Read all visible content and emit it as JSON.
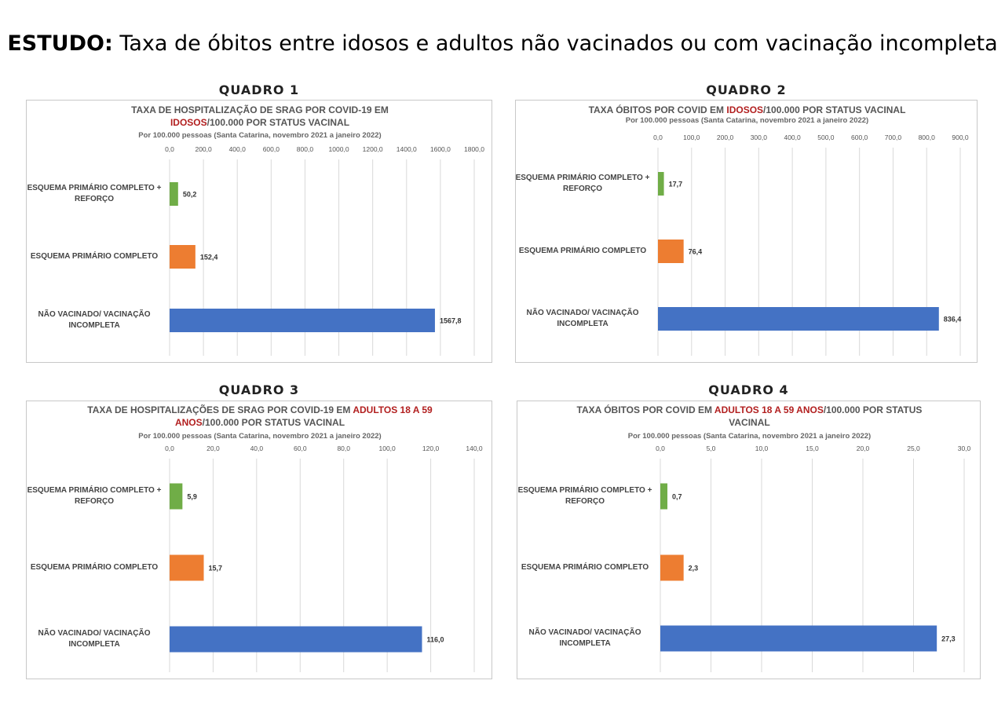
{
  "header": {
    "bold": "ESTUDO:",
    "rest": " Taxa de óbitos entre idosos e adultos não vacinados ou com vacinação incompleta"
  },
  "colors": {
    "green": "#70AD47",
    "orange": "#ED7D31",
    "blue": "#4472C4",
    "highlight": "#B21F1F",
    "grid": "#D9D9D9"
  },
  "chart_data": [
    {
      "type": "bar",
      "orientation": "horizontal",
      "panel_label": "QUADRO 1",
      "title_parts": [
        "TAXA DE HOSPITALIZAÇÃO DE SRAG POR COVID-19 EM ",
        "IDOSOS",
        "/100.000 POR STATUS VACINAL"
      ],
      "subtitle": "Por 100.000 pessoas  (Santa Catarina, novembro 2021 a  janeiro 2022)",
      "categories": [
        "ESQUEMA PRIMÁRIO COMPLETO + REFORÇO",
        "ESQUEMA PRIMÁRIO COMPLETO",
        "NÃO VACINADO/ VACINAÇÃO INCOMPLETA"
      ],
      "values": [
        50.2,
        152.4,
        1567.8
      ],
      "value_labels": [
        "50,2",
        "152,4",
        "1567,8"
      ],
      "xlim": [
        0,
        1800
      ],
      "ticks": [
        "0,0",
        "200,0",
        "400,0",
        "600,0",
        "800,0",
        "1000,0",
        "1200,0",
        "1400,0",
        "1600,0",
        "1800,0"
      ],
      "grid": true
    },
    {
      "type": "bar",
      "orientation": "horizontal",
      "panel_label": "QUADRO 2",
      "title_parts": [
        "TAXA ÓBITOS POR COVID EM ",
        "IDOSOS",
        "/100.000 POR STATUS VACINAL"
      ],
      "subtitle": "Por 100.000 pessoas  (Santa Catarina, novembro 2021 a  janeiro 2022)",
      "categories": [
        "ESQUEMA PRIMÁRIO COMPLETO + REFORÇO",
        "ESQUEMA PRIMÁRIO COMPLETO",
        "NÃO VACINADO/ VACINAÇÃO INCOMPLETA"
      ],
      "values": [
        17.7,
        76.4,
        836.4
      ],
      "value_labels": [
        "17,7",
        "76,4",
        "836,4"
      ],
      "xlim": [
        0,
        900
      ],
      "ticks": [
        "0,0",
        "100,0",
        "200,0",
        "300,0",
        "400,0",
        "500,0",
        "600,0",
        "700,0",
        "800,0",
        "900,0"
      ],
      "grid": true
    },
    {
      "type": "bar",
      "orientation": "horizontal",
      "panel_label": "QUADRO 3",
      "title_parts": [
        "TAXA DE HOSPITALIZAÇÕES DE SRAG POR COVID-19 EM ",
        "ADULTOS 18 A 59 ANOS",
        "/100.000 POR STATUS VACINAL"
      ],
      "subtitle": "Por 100.000 pessoas (Santa Catarina, novembro 2021 a janeiro 2022)",
      "categories": [
        "ESQUEMA PRIMÁRIO COMPLETO + REFORÇO",
        "ESQUEMA PRIMÁRIO COMPLETO",
        "NÃO VACINADO/ VACINAÇÃO INCOMPLETA"
      ],
      "values": [
        5.9,
        15.7,
        116.0
      ],
      "value_labels": [
        "5,9",
        "15,7",
        "116,0"
      ],
      "xlim": [
        0,
        140
      ],
      "ticks": [
        "0,0",
        "20,0",
        "40,0",
        "60,0",
        "80,0",
        "100,0",
        "120,0",
        "140,0"
      ],
      "grid": true
    },
    {
      "type": "bar",
      "orientation": "horizontal",
      "panel_label": "QUADRO 4",
      "title_parts": [
        "TAXA ÓBITOS POR COVID EM ",
        "ADULTOS 18 A 59 ANOS",
        "/100.000 POR STATUS VACINAL"
      ],
      "subtitle": "Por 100.000 pessoas (Santa Catarina, novembro 2021 a janeiro 2022)",
      "categories": [
        "ESQUEMA PRIMÁRIO COMPLETO + REFORÇO",
        "ESQUEMA PRIMÁRIO COMPLETO",
        "NÃO VACINADO/ VACINAÇÃO INCOMPLETA"
      ],
      "values": [
        0.7,
        2.3,
        27.3
      ],
      "value_labels": [
        "0,7",
        "2,3",
        "27,3"
      ],
      "xlim": [
        0,
        30
      ],
      "ticks": [
        "0,0",
        "5,0",
        "10,0",
        "15,0",
        "20,0",
        "25,0",
        "30,0"
      ],
      "grid": true
    }
  ]
}
